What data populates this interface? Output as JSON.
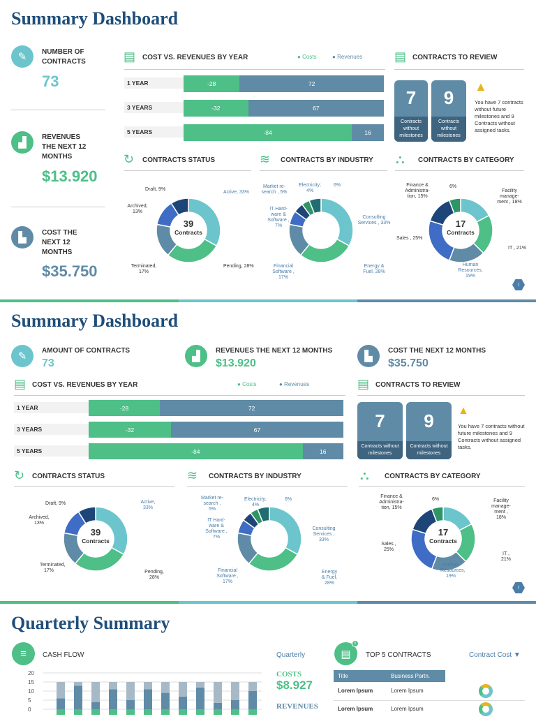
{
  "colors": {
    "teal": "#6CC5CC",
    "green": "#4DBF87",
    "slate": "#5F8BA6",
    "royal": "#3F6CC4",
    "navy": "#1E4577",
    "darkgreen": "#2E9566",
    "darkteal": "#216E72",
    "title": "#1F4E79"
  },
  "panel1": {
    "title": "Summary Dashboard",
    "kpis": [
      {
        "label": "NUMBER OF CONTRACTS",
        "value": "73",
        "icon": "contract-icon"
      },
      {
        "label": "REVENUES THE NEXT 12 MONTHS",
        "value": "$13.920",
        "icon": "growth-chart-icon"
      },
      {
        "label": "COST THE NEXT 12 MONTHS",
        "value": "$35.750",
        "icon": "cost-chart-icon"
      }
    ],
    "page": "1"
  },
  "panel2": {
    "title": "Summary Dashboard",
    "kpis": [
      {
        "label": "AMOUNT OF CONTRACTS",
        "value": "73"
      },
      {
        "label": "REVENUES THE NEXT 12 MONTHS",
        "value": "$13.920"
      },
      {
        "label": "COST THE NEXT 12  MONTHS",
        "value": "$35.750"
      }
    ],
    "page": "2"
  },
  "cost_vs_rev": {
    "title": "COST VS. REVENUES BY YEAR",
    "legend_costs": "Costs",
    "legend_revenues": "Revenues",
    "rows": [
      {
        "label": "1 YEAR",
        "cost": "-28",
        "revenue": "72",
        "cv": 28,
        "rv": 72
      },
      {
        "label": "3 YEARS",
        "cost": "-32",
        "revenue": "67",
        "cv": 32,
        "rv": 67
      },
      {
        "label": "5 YEARS",
        "cost": "-84",
        "revenue": "16",
        "cv": 84,
        "rv": 16
      }
    ]
  },
  "review": {
    "title": "CONTRACTS TO REVIEW",
    "cards": [
      {
        "num": "7",
        "label": "Contracts without milestones"
      },
      {
        "num": "9",
        "label": "Contracts without milestones"
      }
    ],
    "warning": "You have 7 contracts without future milestones and 9 Contracts without assigned tasks."
  },
  "status": {
    "title": "CONTRACTS STATUS",
    "center_num": "39",
    "center_label": "Contracts",
    "slices": [
      {
        "label": "Active, 33%",
        "value": 33,
        "color": "#6CC5CC"
      },
      {
        "label": "Pending, 28%",
        "value": 28,
        "color": "#4DBF87"
      },
      {
        "label": "Terminated, 17%",
        "value": 17,
        "color": "#5F8BA6"
      },
      {
        "label": "Archived, 13%",
        "value": 13,
        "color": "#3F6CC4"
      },
      {
        "label": "Draft, 9%",
        "value": 9,
        "color": "#1E4577"
      }
    ]
  },
  "industry": {
    "title": "CONTRACTS BY INDUSTRY",
    "slices": [
      {
        "label": "Consulting Services , 33%",
        "value": 33,
        "color": "#6CC5CC"
      },
      {
        "label": "Energy & Fuel, 28%",
        "value": 28,
        "color": "#4DBF87"
      },
      {
        "label": "Financial Software , 17%",
        "value": 17,
        "color": "#5F8BA6"
      },
      {
        "label": "IT Hard-ware & Software , 7%",
        "value": 7,
        "color": "#3F6CC4"
      },
      {
        "label": "Market re-search , 5%",
        "value": 5,
        "color": "#1E4577"
      },
      {
        "label": "Electricity; 4%",
        "value": 4,
        "color": "#2E9566"
      },
      {
        "label": "6%",
        "value": 6,
        "color": "#216E72"
      }
    ]
  },
  "category": {
    "title": "CONTRACTS BY CATEGORY",
    "center_num": "17",
    "center_label": "Contracts",
    "slices": [
      {
        "label": "Facility manage-ment , 18%",
        "value": 18,
        "color": "#6CC5CC"
      },
      {
        "label": "IT , 21%",
        "value": 21,
        "color": "#4DBF87"
      },
      {
        "label": "Human Resources, 19%",
        "value": 19,
        "color": "#5F8BA6"
      },
      {
        "label": "Sales , 25%",
        "value": 25,
        "color": "#3F6CC4"
      },
      {
        "label": "Finance & Administra-tion, 15%",
        "value": 15,
        "color": "#1E4577"
      },
      {
        "label": "6%",
        "value": 6,
        "color": "#2E9566"
      }
    ]
  },
  "quarterly": {
    "title": "Quarterly Summary",
    "cashflow_title": "CASH FLOW",
    "period": "Quarterly",
    "costs_label": "COSTS",
    "costs_value": "$8.927",
    "revenues_label": "REVENUES",
    "top5_title": "TOP 5 CONTRACTS",
    "top5_badge": "5",
    "sort": "Contract Cost",
    "table": {
      "headers": [
        "Title",
        "Business  Partn."
      ],
      "rows": [
        [
          "Lorem Ipsum",
          "Lorem Ipsum"
        ],
        [
          "Lorem Ipsum",
          "Lorem Ipsum"
        ]
      ]
    }
  },
  "chart_data": [
    {
      "type": "bar",
      "title": "CASH FLOW",
      "stacked": true,
      "ylim": [
        0,
        20
      ],
      "yticks": [
        0,
        5,
        10,
        15,
        20
      ],
      "grid": true,
      "series": [
        {
          "values": [
            6,
            13,
            4,
            11,
            5,
            11,
            9,
            7,
            12,
            3.5,
            5,
            10
          ],
          "color": "#5F8BA6"
        },
        {
          "values": [
            9,
            2,
            11,
            4,
            10,
            4,
            6,
            8,
            3,
            11.5,
            10,
            5
          ],
          "color": "#A7B9C6"
        }
      ]
    },
    {
      "type": "bar",
      "title": "COST VS. REVENUES BY YEAR",
      "orientation": "horizontal",
      "categories": [
        "1 YEAR",
        "3 YEARS",
        "5 YEARS"
      ],
      "series": [
        {
          "name": "Costs",
          "values": [
            -28,
            -32,
            -84
          ]
        },
        {
          "name": "Revenues",
          "values": [
            72,
            67,
            16
          ]
        }
      ]
    }
  ]
}
